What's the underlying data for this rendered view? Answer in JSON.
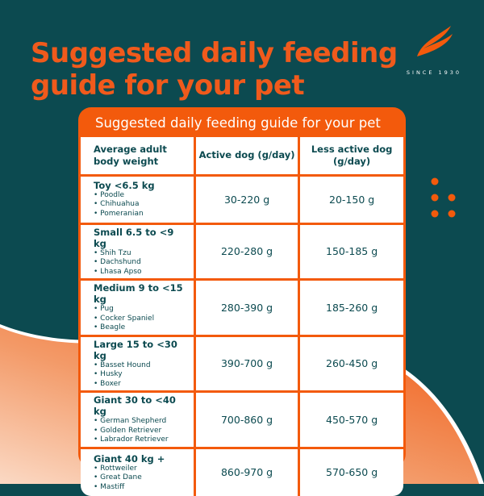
{
  "heading": "Suggested daily feeding guide for your pet",
  "logo": {
    "icon": "flame-swoosh-icon",
    "tagline": "SINCE 1930"
  },
  "colors": {
    "background": "#0c4a50",
    "accent": "#f35a0c",
    "text": "#0c4a50"
  },
  "table": {
    "title": "Suggested daily feeding guide for your pet",
    "headers": [
      "Average adult body weight",
      "Active dog (g/day)",
      "Less active dog (g/day)"
    ],
    "rows": [
      {
        "weight": "Toy <6.5 kg",
        "breeds": [
          "Poodle",
          "Chihuahua",
          "Pomeranian"
        ],
        "active": "30-220 g",
        "less_active": "20-150 g"
      },
      {
        "weight": "Small 6.5 to <9 kg",
        "breeds": [
          "Shih Tzu",
          "Dachshund",
          "Lhasa Apso"
        ],
        "active": "220-280 g",
        "less_active": "150-185 g"
      },
      {
        "weight": "Medium 9 to <15 kg",
        "breeds": [
          "Pug",
          "Cocker Spaniel",
          "Beagle"
        ],
        "active": "280-390 g",
        "less_active": "185-260 g"
      },
      {
        "weight": "Large 15 to <30 kg",
        "breeds": [
          "Basset Hound",
          "Husky",
          "Boxer"
        ],
        "active": "390-700 g",
        "less_active": "260-450 g"
      },
      {
        "weight": "Giant 30 to <40 kg",
        "breeds": [
          "German Shepherd",
          "Golden Retriever",
          "Labrador Retriever"
        ],
        "active": "700-860 g",
        "less_active": "450-570 g"
      },
      {
        "weight": "Giant 40 kg +",
        "breeds": [
          "Rottweiler",
          "Great Dane",
          "Mastiff"
        ],
        "active": "860-970 g",
        "less_active": "570-650 g"
      }
    ]
  }
}
